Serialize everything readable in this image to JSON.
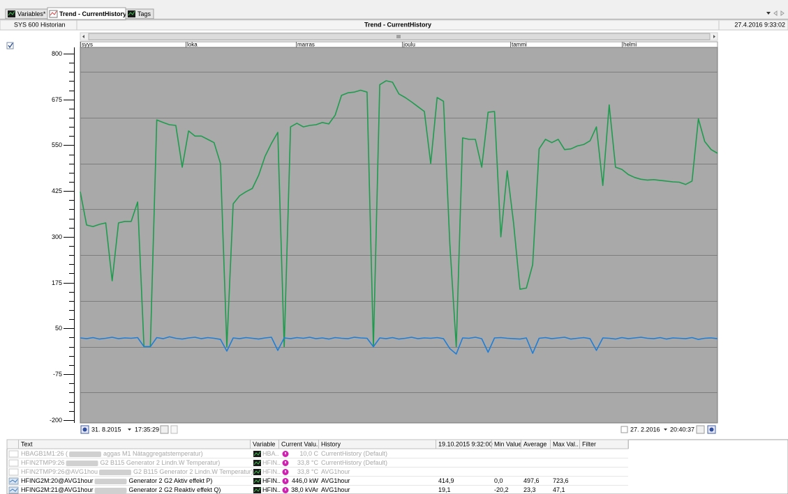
{
  "tabs": [
    "Variables*",
    "Trend - CurrentHistory",
    "Tags"
  ],
  "header": {
    "left": "SYS 600 Historian",
    "title": "Trend - CurrentHistory",
    "datetime": "27.4.2016 9:33:02"
  },
  "chart_data": {
    "type": "line",
    "x_labels": [
      "syys",
      "loka",
      "marras",
      "joulu",
      "tammi",
      "helmi"
    ],
    "ylim": [
      -208,
      817
    ],
    "yticks": [
      -200,
      -75,
      50,
      175,
      300,
      425,
      550,
      675,
      800
    ],
    "ygrid": [
      -125,
      0,
      125,
      250,
      375,
      500,
      625,
      750
    ],
    "background": "#a9a9a9",
    "series": [
      {
        "color": "#1e9c4e",
        "values": [
          423,
          332,
          328,
          334,
          338,
          180,
          338,
          342,
          342,
          395,
          0,
          0,
          619,
          612,
          606,
          604,
          490,
          589,
          575,
          575,
          566,
          557,
          500,
          0,
          390,
          412,
          423,
          432,
          468,
          520,
          555,
          585,
          0,
          600,
          610,
          600,
          604,
          606,
          612,
          608,
          632,
          686,
          693,
          695,
          700,
          695,
          0,
          715,
          726,
          722,
          690,
          680,
          668,
          655,
          642,
          500,
          680,
          670,
          280,
          0,
          570,
          566,
          566,
          490,
          640,
          642,
          300,
          480,
          338,
          157,
          160,
          224,
          540,
          566,
          557,
          566,
          538,
          540,
          548,
          552,
          562,
          600,
          440,
          660,
          490,
          484,
          470,
          462,
          457,
          455,
          456,
          454,
          452,
          450,
          449,
          443,
          452,
          622,
          560,
          538,
          528
        ]
      },
      {
        "color": "#1f7ed6",
        "values": [
          24,
          22,
          25,
          21,
          23,
          26,
          22,
          24,
          23,
          25,
          0,
          0,
          25,
          22,
          27,
          23,
          21,
          24,
          26,
          22,
          25,
          23,
          20,
          -12,
          24,
          22,
          25,
          23,
          21,
          24,
          26,
          -10,
          24,
          22,
          25,
          23,
          26,
          22,
          24,
          21,
          25,
          23,
          22,
          26,
          24,
          23,
          0,
          24,
          22,
          25,
          21,
          23,
          26,
          22,
          24,
          23,
          25,
          22,
          -5,
          -20,
          24,
          23,
          26,
          22,
          -15,
          24,
          25,
          23,
          22,
          21,
          24,
          -18,
          23,
          25,
          22,
          24,
          26,
          21,
          23,
          25,
          22,
          -10,
          24,
          23,
          21,
          25,
          22,
          24,
          26,
          23,
          22,
          25,
          21,
          24,
          23,
          22,
          25,
          20,
          23,
          24,
          22
        ]
      }
    ]
  },
  "range": {
    "start_date": "31. 8.2015",
    "start_time": "17:35:29",
    "end_date": "27. 2.2016",
    "end_time": "20:40:37"
  },
  "table": {
    "columns": [
      "Text",
      "Variable",
      "Current Valu..",
      "History",
      "19.10.2015 9:32:00",
      "Min Value",
      "Average",
      "Max Val..",
      "Filter"
    ],
    "rows": [
      [
        "HBAGB1M1:26 (",
        "aggas M1 Nätaggregatstemperatur)",
        "HBA..",
        "10,0 C",
        "CurrentHistory (Default)"
      ],
      [
        "HFIN2TMP9:26",
        "G2 B115 Generator 2 Lindn.W Temperatur)",
        "HFIN..",
        "33,8 °C",
        "CurrentHistory (Default)"
      ],
      [
        "HFIN2TMP9:26@AVG1hou",
        "G2 B115 Generator 2 Lindn.W Temperatur)",
        "HFIN..",
        "33,8 °C",
        "AVG1hour"
      ],
      [
        "HFING2M:20@AVG1hour",
        "Generator 2 G2 Aktiv effekt P)",
        "HFIN..",
        "446,0 kW",
        "AVG1hour",
        "414,9",
        "0,0",
        "497,6",
        "723,6"
      ],
      [
        "HFING2M:21@AVG1hour",
        "Generator 2 G2 Reaktiv effekt Q)",
        "HFIN..",
        "38,0 kVAr",
        "AVG1hour",
        "19,1",
        "-20,2",
        "23,3",
        "47,1"
      ]
    ]
  }
}
